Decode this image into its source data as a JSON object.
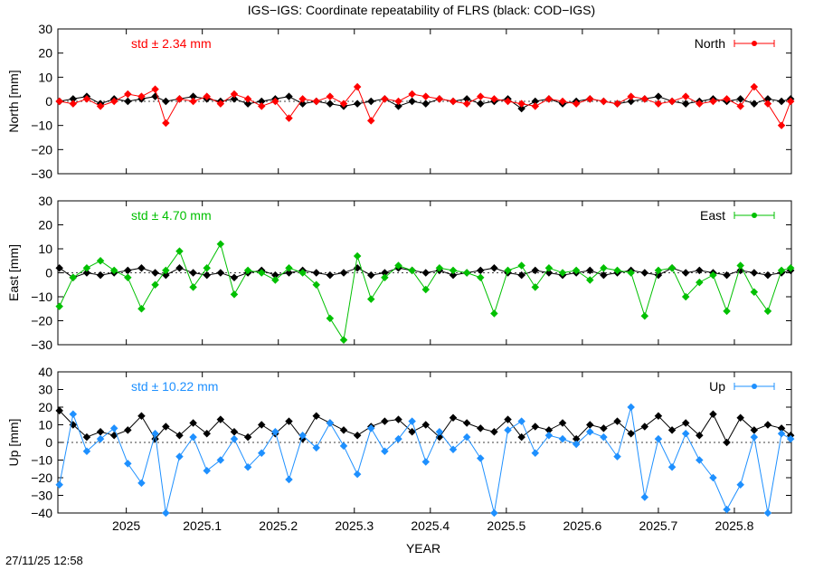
{
  "timestamp": "27/11/25 12:58",
  "chart_data": {
    "type": "scatter",
    "title": "IGS−IGS: Coordinate repeatability of FLRS (black: COD−IGS)",
    "xlabel": "YEAR",
    "xlim": [
      2024.91,
      2025.875
    ],
    "xticks": [
      2025,
      2025.1,
      2025.2,
      2025.3,
      2025.4,
      2025.5,
      2025.6,
      2025.7,
      2025.8
    ],
    "xtick_labels": [
      "2025",
      "2025.1",
      "2025.2",
      "2025.3",
      "2025.4",
      "2025.5",
      "2025.6",
      "2025.7",
      "2025.8"
    ],
    "panels": [
      {
        "id": "north",
        "ylabel": "North [mm]",
        "ylim": [
          -30,
          30
        ],
        "yticks": [
          -30,
          -20,
          -10,
          0,
          10,
          20,
          30
        ],
        "ytick_labels": [
          "−30",
          "−20",
          "−10",
          "0",
          "10",
          "20",
          "30"
        ],
        "std_label": "std ± 2.34 mm",
        "legend": "North",
        "color": "#ff0000",
        "ref_color": "#000000",
        "series_x": [
          2024.912,
          2024.93,
          2024.948,
          2024.966,
          2024.984,
          2025.002,
          2025.02,
          2025.038,
          2025.052,
          2025.07,
          2025.088,
          2025.106,
          2025.124,
          2025.142,
          2025.16,
          2025.178,
          2025.196,
          2025.214,
          2025.232,
          2025.25,
          2025.268,
          2025.286,
          2025.304,
          2025.322,
          2025.34,
          2025.358,
          2025.376,
          2025.394,
          2025.412,
          2025.43,
          2025.448,
          2025.466,
          2025.484,
          2025.502,
          2025.52,
          2025.538,
          2025.556,
          2025.574,
          2025.592,
          2025.61,
          2025.628,
          2025.646,
          2025.664,
          2025.682,
          2025.7,
          2025.718,
          2025.736,
          2025.754,
          2025.772,
          2025.79,
          2025.808,
          2025.826,
          2025.844,
          2025.862,
          2025.874
        ],
        "series_y": [
          0,
          -1,
          1,
          -2,
          0,
          3,
          2,
          5,
          -9,
          1,
          0,
          2,
          -1,
          3,
          1,
          -2,
          0,
          -7,
          1,
          0,
          2,
          -1,
          6,
          -8,
          1,
          0,
          3,
          2,
          1,
          0,
          -1,
          2,
          1,
          0,
          -1,
          -2,
          1,
          0,
          -1,
          1,
          0,
          -1,
          2,
          1,
          -1,
          0,
          2,
          -1,
          0,
          1,
          -2,
          6,
          -1,
          -10,
          0
        ],
        "ref_y": [
          0,
          1,
          2,
          -1,
          1,
          0,
          1,
          2,
          0,
          1,
          2,
          1,
          0,
          1,
          -1,
          0,
          1,
          2,
          -1,
          0,
          -1,
          -2,
          -1,
          0,
          1,
          -2,
          0,
          -1,
          1,
          0,
          1,
          -1,
          0,
          1,
          -3,
          0,
          1,
          -1,
          0,
          1,
          0,
          -1,
          0,
          1,
          2,
          0,
          -1,
          0,
          1,
          0,
          1,
          -1,
          1,
          0,
          1
        ]
      },
      {
        "id": "east",
        "ylabel": "East [mm]",
        "ylim": [
          -30,
          30
        ],
        "yticks": [
          -30,
          -20,
          -10,
          0,
          10,
          20,
          30
        ],
        "ytick_labels": [
          "−30",
          "−20",
          "−10",
          "0",
          "10",
          "20",
          "30"
        ],
        "std_label": "std ± 4.70 mm",
        "legend": "East",
        "color": "#00c000",
        "ref_color": "#000000",
        "series_x": [
          2024.912,
          2024.93,
          2024.948,
          2024.966,
          2024.984,
          2025.002,
          2025.02,
          2025.038,
          2025.052,
          2025.07,
          2025.088,
          2025.106,
          2025.124,
          2025.142,
          2025.16,
          2025.178,
          2025.196,
          2025.214,
          2025.232,
          2025.25,
          2025.268,
          2025.286,
          2025.304,
          2025.322,
          2025.34,
          2025.358,
          2025.376,
          2025.394,
          2025.412,
          2025.43,
          2025.448,
          2025.466,
          2025.484,
          2025.502,
          2025.52,
          2025.538,
          2025.556,
          2025.574,
          2025.592,
          2025.61,
          2025.628,
          2025.646,
          2025.664,
          2025.682,
          2025.7,
          2025.718,
          2025.736,
          2025.754,
          2025.772,
          2025.79,
          2025.808,
          2025.826,
          2025.844,
          2025.862,
          2025.874
        ],
        "series_y": [
          -14,
          -2,
          2,
          5,
          1,
          -2,
          -15,
          -5,
          1,
          9,
          -6,
          2,
          12,
          -9,
          1,
          0,
          -3,
          2,
          0,
          -5,
          -19,
          -28,
          7,
          -11,
          -2,
          3,
          1,
          -7,
          2,
          1,
          0,
          -2,
          -17,
          1,
          3,
          -6,
          2,
          0,
          1,
          -3,
          2,
          1,
          0,
          -18,
          1,
          2,
          -10,
          -4,
          -1,
          -16,
          3,
          -8,
          -16,
          1,
          2
        ],
        "ref_y": [
          2,
          -2,
          0,
          -1,
          0,
          1,
          2,
          0,
          -1,
          2,
          0,
          -1,
          0,
          -2,
          0,
          1,
          -1,
          0,
          1,
          0,
          -1,
          0,
          2,
          -1,
          0,
          2,
          1,
          0,
          1,
          -1,
          0,
          1,
          2,
          0,
          -1,
          1,
          0,
          -1,
          0,
          1,
          -1,
          0,
          1,
          0,
          -1,
          2,
          0,
          1,
          0,
          -1,
          1,
          0,
          -1,
          0,
          1
        ]
      },
      {
        "id": "up",
        "ylabel": "Up [mm]",
        "ylim": [
          -40,
          40
        ],
        "yticks": [
          -40,
          -30,
          -20,
          -10,
          0,
          10,
          20,
          30,
          40
        ],
        "ytick_labels": [
          "−40",
          "−30",
          "−20",
          "−10",
          "0",
          "10",
          "20",
          "30",
          "40"
        ],
        "std_label": "std ± 10.22 mm",
        "legend": "Up",
        "color": "#1e90ff",
        "ref_color": "#000000",
        "series_x": [
          2024.912,
          2024.93,
          2024.948,
          2024.966,
          2024.984,
          2025.002,
          2025.02,
          2025.038,
          2025.052,
          2025.07,
          2025.088,
          2025.106,
          2025.124,
          2025.142,
          2025.16,
          2025.178,
          2025.196,
          2025.214,
          2025.232,
          2025.25,
          2025.268,
          2025.286,
          2025.304,
          2025.322,
          2025.34,
          2025.358,
          2025.376,
          2025.394,
          2025.412,
          2025.43,
          2025.448,
          2025.466,
          2025.484,
          2025.502,
          2025.52,
          2025.538,
          2025.556,
          2025.574,
          2025.592,
          2025.61,
          2025.628,
          2025.646,
          2025.664,
          2025.682,
          2025.7,
          2025.718,
          2025.736,
          2025.754,
          2025.772,
          2025.79,
          2025.808,
          2025.826,
          2025.844,
          2025.862,
          2025.874
        ],
        "series_y": [
          -24,
          16,
          -5,
          2,
          8,
          -12,
          -23,
          5,
          -40,
          -8,
          3,
          -16,
          -10,
          2,
          -14,
          -6,
          6,
          -21,
          4,
          -3,
          11,
          -2,
          -18,
          8,
          -5,
          2,
          12,
          -11,
          6,
          -4,
          3,
          -9,
          -40,
          7,
          12,
          -6,
          4,
          2,
          -1,
          6,
          3,
          -8,
          20,
          -31,
          2,
          -14,
          5,
          -10,
          -20,
          -38,
          -24,
          3,
          -40,
          5,
          2
        ],
        "ref_y": [
          18,
          10,
          3,
          6,
          4,
          7,
          15,
          2,
          9,
          4,
          11,
          5,
          13,
          6,
          3,
          10,
          5,
          12,
          2,
          15,
          11,
          7,
          4,
          9,
          12,
          13,
          6,
          10,
          3,
          14,
          11,
          8,
          6,
          13,
          3,
          9,
          7,
          11,
          2,
          10,
          8,
          12,
          5,
          9,
          15,
          7,
          11,
          4,
          16,
          0,
          14,
          7,
          10,
          8,
          4
        ]
      }
    ]
  }
}
